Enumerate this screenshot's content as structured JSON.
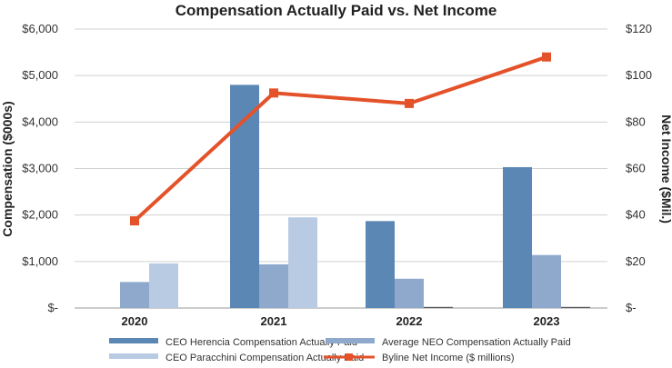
{
  "chart_data": {
    "type": "bar+line",
    "title": "Compensation Actually Paid vs. Net Income",
    "categories": [
      "2020",
      "2021",
      "2022",
      "2023"
    ],
    "ylabel_left": "Compensation ($000s)",
    "ylabel_right": "Net Income ($Mil.)",
    "ylim_left": [
      0,
      6000
    ],
    "ylim_right": [
      0,
      120
    ],
    "left_ticks": [
      {
        "value": 0,
        "label": "$-"
      },
      {
        "value": 1000,
        "label": "$1,000"
      },
      {
        "value": 2000,
        "label": "$2,000"
      },
      {
        "value": 3000,
        "label": "$3,000"
      },
      {
        "value": 4000,
        "label": "$4,000"
      },
      {
        "value": 5000,
        "label": "$5,000"
      },
      {
        "value": 6000,
        "label": "$6,000"
      }
    ],
    "right_ticks": [
      {
        "value": 0,
        "label": "$-"
      },
      {
        "value": 20,
        "label": "$20"
      },
      {
        "value": 40,
        "label": "$40"
      },
      {
        "value": 60,
        "label": "$60"
      },
      {
        "value": 80,
        "label": "$80"
      },
      {
        "value": 100,
        "label": "$100"
      },
      {
        "value": 120,
        "label": "$120"
      }
    ],
    "grid": true,
    "series": [
      {
        "name": "CEO Herencia Compensation Actually Paid",
        "type": "bar",
        "axis": "left",
        "color": "#5b87b5",
        "values": [
          0,
          4800,
          1870,
          3030
        ]
      },
      {
        "name": "Average NEO Compensation Actually Paid",
        "type": "bar",
        "axis": "left",
        "color": "#8ea9cc",
        "values": [
          560,
          940,
          630,
          1140
        ]
      },
      {
        "name": "CEO Paracchini Compensation Actually Paid",
        "type": "bar",
        "axis": "left",
        "color": "#b9cbe3",
        "values": [
          960,
          1950,
          0,
          0
        ]
      },
      {
        "name": "Byline Net Income ($ millions)",
        "type": "line",
        "axis": "right",
        "color": "#e4522a",
        "values": [
          37.5,
          92.5,
          88,
          108
        ]
      }
    ],
    "legend_position": "bottom"
  }
}
